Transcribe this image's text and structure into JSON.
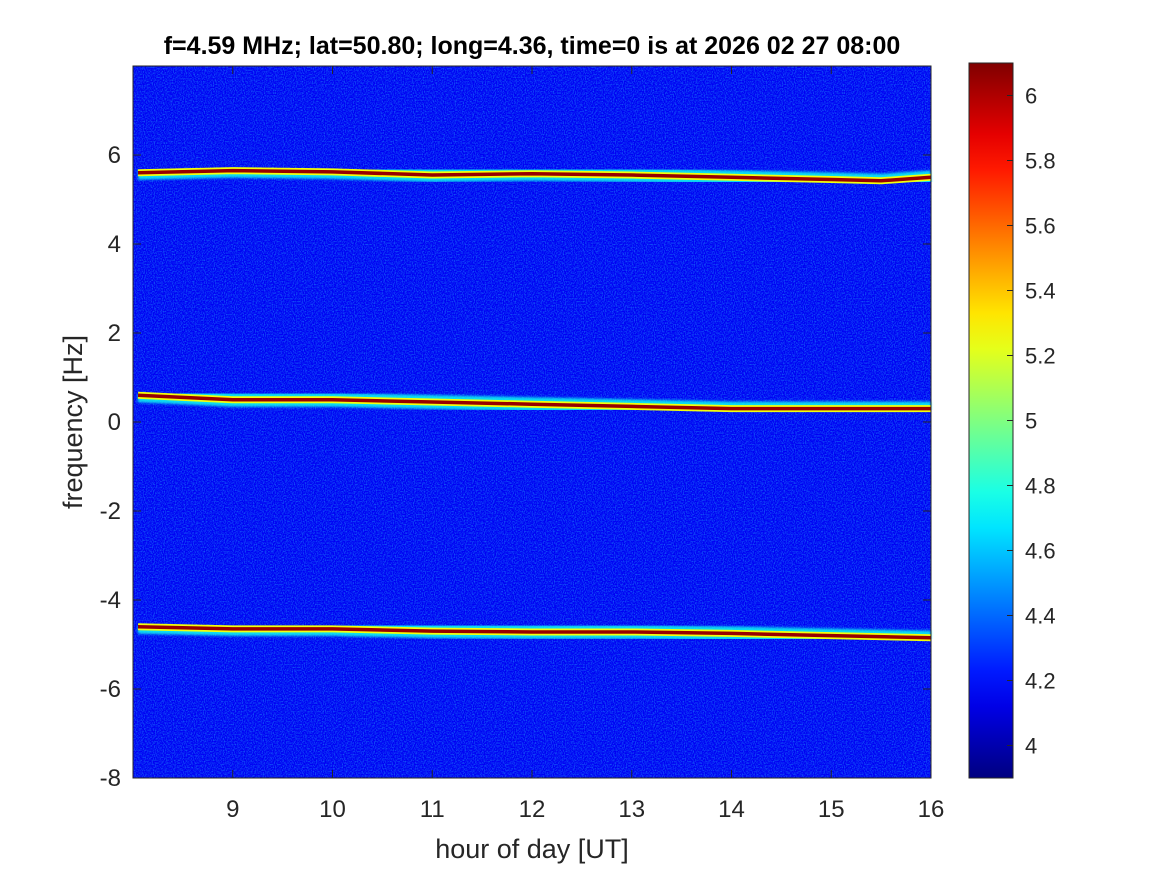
{
  "chart_data": {
    "type": "heatmap",
    "title": "f=4.59 MHz;  lat=50.80; long=4.36, time=0 is at 2026 02 27 08:00",
    "xlabel": "hour of day [UT]",
    "ylabel": "frequency [Hz]",
    "xlim": [
      8.0,
      16.0
    ],
    "ylim": [
      -8,
      8
    ],
    "x_ticks": [
      9,
      10,
      11,
      12,
      13,
      14,
      15,
      16
    ],
    "y_ticks": [
      -8,
      -6,
      -4,
      -2,
      0,
      2,
      4,
      6
    ],
    "colorbar": {
      "colormap": "jet",
      "range": [
        3.9,
        6.1
      ],
      "ticks": [
        "4",
        "4.2",
        "4.4",
        "4.6",
        "4.8",
        "5",
        "5.2",
        "5.4",
        "5.6",
        "5.8",
        "6"
      ]
    },
    "background_level": 4.15,
    "traces": [
      {
        "peak_level": 6.05,
        "points": [
          [
            8.05,
            5.6
          ],
          [
            9.0,
            5.65
          ],
          [
            10.0,
            5.62
          ],
          [
            11.0,
            5.55
          ],
          [
            12.0,
            5.58
          ],
          [
            13.0,
            5.55
          ],
          [
            14.0,
            5.5
          ],
          [
            15.0,
            5.45
          ],
          [
            15.5,
            5.42
          ],
          [
            16.0,
            5.5
          ]
        ]
      },
      {
        "peak_level": 6.05,
        "points": [
          [
            8.05,
            0.6
          ],
          [
            9.0,
            0.5
          ],
          [
            10.0,
            0.5
          ],
          [
            11.0,
            0.45
          ],
          [
            12.0,
            0.4
          ],
          [
            13.0,
            0.35
          ],
          [
            14.0,
            0.3
          ],
          [
            15.0,
            0.3
          ],
          [
            16.0,
            0.3
          ]
        ]
      },
      {
        "peak_level": 6.05,
        "points": [
          [
            8.05,
            -4.6
          ],
          [
            9.0,
            -4.65
          ],
          [
            10.0,
            -4.65
          ],
          [
            11.0,
            -4.7
          ],
          [
            12.0,
            -4.72
          ],
          [
            13.0,
            -4.72
          ],
          [
            14.0,
            -4.75
          ],
          [
            15.0,
            -4.8
          ],
          [
            16.0,
            -4.85
          ]
        ]
      }
    ]
  },
  "colors": {
    "background": "#ffffff",
    "axis": "#262626",
    "plot_background": "#0c2fb4"
  }
}
